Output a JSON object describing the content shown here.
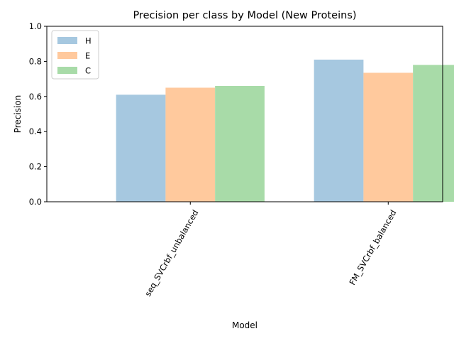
{
  "chart_data": {
    "type": "bar",
    "title": "Precision per class by Model (New Proteins)",
    "xlabel": "Model",
    "ylabel": "Precision",
    "categories": [
      "seq_SVCrbf_unbalanced",
      "FM_SVCrbf_balanced"
    ],
    "series": [
      {
        "name": "H",
        "values": [
          0.61,
          0.81
        ],
        "color": "#a6c8e0"
      },
      {
        "name": "E",
        "values": [
          0.65,
          0.735
        ],
        "color": "#ffc99d"
      },
      {
        "name": "C",
        "values": [
          0.66,
          0.78
        ],
        "color": "#a8dba8"
      }
    ],
    "ylim": [
      0,
      1.0
    ],
    "yticks": [
      0.0,
      0.2,
      0.4,
      0.6,
      0.8,
      1.0
    ],
    "ytick_labels": [
      "0.0",
      "0.2",
      "0.4",
      "0.6",
      "0.8",
      "1.0"
    ],
    "grid": false,
    "legend_position": "top-left",
    "xtick_rotation": "60 degrees"
  }
}
